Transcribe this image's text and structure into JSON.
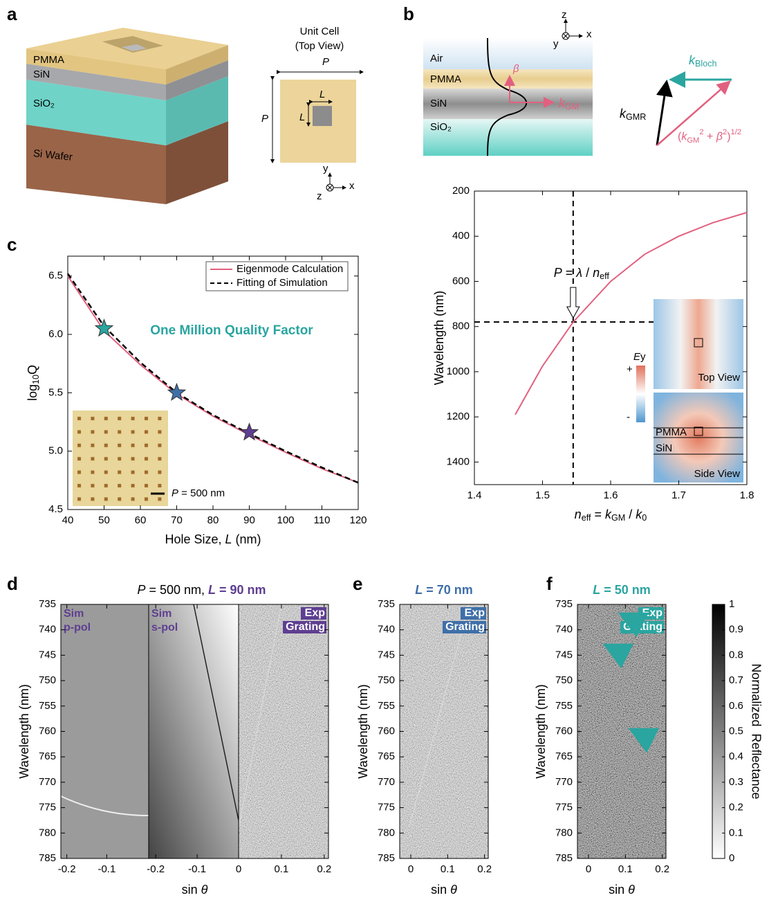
{
  "panel_letters": [
    "a",
    "b",
    "c",
    "d",
    "e",
    "f"
  ],
  "panel_a": {
    "layers": [
      "PMMA",
      "SiN",
      "SiO₂",
      "Si Wafer"
    ],
    "unit_cell_title": [
      "Unit Cell",
      "(Top View)"
    ],
    "period": "P",
    "hole": "L",
    "axes": [
      "y",
      "z",
      "x"
    ]
  },
  "panel_b": {
    "layers": [
      "Air",
      "PMMA",
      "SiN",
      "SiO₂"
    ],
    "axes": [
      "z",
      "y",
      "x"
    ],
    "beta": [
      {
        "italic": "β"
      }
    ],
    "k_gm": [
      {
        "italic": "k"
      },
      {
        "sub": "GM"
      }
    ],
    "k_bloch": [
      {
        "italic": "k"
      },
      {
        "sub": "Bloch"
      }
    ],
    "k_gmr": [
      {
        "italic": "k"
      },
      {
        "sub": "GMR"
      }
    ],
    "sum": [
      {
        "text": "("
      },
      {
        "italic": "k"
      },
      {
        "sub": "GM"
      },
      {
        "sup": "2"
      },
      {
        "text": " + "
      },
      {
        "italic": "β"
      },
      {
        "sup": "2"
      },
      {
        "text": ")"
      },
      {
        "sup": "1/2"
      }
    ]
  },
  "chart_data": [
    {
      "type": "line",
      "xlabel": [
        {
          "text": "Hole Size, "
        },
        {
          "italic": "L"
        },
        {
          "text": " (nm)"
        }
      ],
      "ylabel": [
        {
          "text": "log"
        },
        {
          "sub": "10"
        },
        {
          "text": "Q"
        }
      ],
      "xlim": [
        40,
        120
      ],
      "ylim": [
        4.5,
        6.67
      ],
      "xticks": [
        40,
        50,
        60,
        70,
        80,
        90,
        100,
        110,
        120
      ],
      "yticks": [
        4.5,
        {
          "value": 5,
          "label": "5.0"
        },
        5.5,
        {
          "value": 6,
          "label": "6.0"
        },
        6.5
      ],
      "x": [
        40,
        50,
        60,
        70,
        80,
        90,
        100,
        110,
        120
      ],
      "series": [
        {
          "name": "Eigenmode Calculation",
          "color": "#e2607f",
          "style": "solid",
          "values": [
            6.5,
            6.03,
            5.74,
            5.49,
            5.3,
            5.14,
            4.99,
            4.85,
            4.73
          ]
        },
        {
          "name": "Fitting of Simulation",
          "color": "#000000",
          "style": "dashed",
          "values": [
            6.52,
            6.07,
            5.76,
            5.5,
            5.31,
            5.15,
            5.0,
            4.86,
            4.73
          ]
        }
      ],
      "markers": {
        "x": [
          50,
          70,
          90
        ],
        "values": [
          6.05,
          5.5,
          5.16
        ],
        "colors": [
          "#2aa5a0",
          "#3f6fa8",
          "#5e3e91"
        ]
      },
      "annotation": "One Million Quality Factor",
      "inset_label": [
        {
          "italic": "P"
        },
        {
          "text": " = 500 nm"
        }
      ],
      "legend": "upper right"
    },
    {
      "type": "line",
      "xlabel": [
        {
          "italic": "n"
        },
        {
          "sub": "eff"
        },
        {
          "text": " = "
        },
        {
          "italic": "k"
        },
        {
          "sub": "GM"
        },
        {
          "text": " / "
        },
        {
          "italic": "k"
        },
        {
          "sub": "0"
        }
      ],
      "ylabel": [
        {
          "text": "Wavelength (nm)"
        }
      ],
      "xlim": [
        1.4,
        1.8
      ],
      "ylim": [
        200,
        1500
      ],
      "y_inverted": true,
      "xticks": [
        1.4,
        1.5,
        1.6,
        1.7,
        1.8
      ],
      "yticks": [
        200,
        400,
        600,
        800,
        1000,
        1200,
        1400
      ],
      "x": [
        1.46,
        1.5,
        1.545,
        1.6,
        1.65,
        1.7,
        1.75,
        1.8
      ],
      "series": [
        {
          "color": "#e2607f",
          "style": "solid",
          "values": [
            1190,
            975,
            780,
            600,
            480,
            400,
            340,
            295
          ]
        }
      ],
      "crosshair": {
        "x": 1.545,
        "y": 780
      },
      "annotation": [
        {
          "italic": "P"
        },
        {
          "text": " = "
        },
        {
          "italic": "λ"
        },
        {
          "text": " / "
        },
        {
          "italic": "n"
        },
        {
          "sub": "eff"
        }
      ],
      "inset": {
        "field": [
          {
            "italic": "E"
          },
          {
            "text": "y"
          }
        ],
        "plus": "+",
        "minus": "-",
        "views": [
          "Top View",
          "Side View"
        ],
        "layers": [
          "PMMA",
          "SiN"
        ]
      }
    },
    {
      "type": "heatmap",
      "title": [
        {
          "italic": "P"
        },
        {
          "text": " = 500 nm, "
        },
        {
          "italic": "L"
        },
        {
          "text": " = 90 nm"
        }
      ],
      "accent_color": "#5e3e91",
      "ylabel": [
        {
          "text": "Wavelength (nm)"
        }
      ],
      "xlabel": [
        {
          "text": "sin "
        },
        {
          "italic": "θ"
        }
      ],
      "ylim": [
        735,
        785
      ],
      "y_inverted": true,
      "yticks": [
        735,
        740,
        745,
        750,
        755,
        760,
        765,
        770,
        775,
        780,
        785
      ],
      "panels": [
        {
          "label": [
            "Sim",
            "p-pol"
          ],
          "xlim": [
            -0.215,
            0.005
          ],
          "xticks": [
            -0.2,
            -0.1
          ]
        },
        {
          "label": [
            "Sim",
            "s-pol"
          ],
          "xlim": [
            -0.217,
            0
          ],
          "xticks": [
            -0.2,
            -0.1,
            0
          ]
        },
        {
          "label": [
            "Exp",
            "Grating"
          ],
          "xlim": [
            0,
            0.21
          ],
          "xticks": [
            0.1,
            0.2
          ]
        }
      ]
    },
    {
      "type": "heatmap",
      "title": [
        {
          "italic": "L"
        },
        {
          "text": " = 70 nm"
        }
      ],
      "accent_color": "#3f6fa8",
      "ylabel": [
        {
          "text": "Wavelength (nm)"
        }
      ],
      "xlabel": [
        {
          "text": "sin "
        },
        {
          "italic": "θ"
        }
      ],
      "ylim": [
        735,
        785
      ],
      "y_inverted": true,
      "yticks": [
        735,
        740,
        745,
        750,
        755,
        760,
        765,
        770,
        775,
        780,
        785
      ],
      "panels": [
        {
          "label": [
            "Exp",
            "Grating"
          ],
          "xlim": [
            -0.03,
            0.21
          ],
          "xticks": [
            0,
            0.1,
            0.2
          ]
        }
      ]
    },
    {
      "type": "heatmap",
      "title": [
        {
          "italic": "L"
        },
        {
          "text": " = 50 nm"
        }
      ],
      "accent_color": "#2aa5a0",
      "ylabel": [
        {
          "text": "Wavelength (nm)"
        }
      ],
      "xlabel": [
        {
          "text": "sin "
        },
        {
          "italic": "θ"
        }
      ],
      "ylim": [
        735,
        785
      ],
      "y_inverted": true,
      "yticks": [
        735,
        740,
        745,
        750,
        755,
        760,
        765,
        770,
        775,
        780,
        785
      ],
      "panels": [
        {
          "label": [
            "Exp",
            "Grating"
          ],
          "xlim": [
            -0.03,
            0.21
          ],
          "xticks": [
            0,
            0.1,
            0.2
          ]
        }
      ],
      "colorbar": {
        "label": "Normalized  Reflectance",
        "lim": [
          0,
          1
        ],
        "ticks": [
          0,
          0.1,
          0.2,
          0.3,
          0.4,
          0.5,
          0.6,
          0.7,
          0.8,
          0.9,
          1
        ]
      }
    }
  ]
}
